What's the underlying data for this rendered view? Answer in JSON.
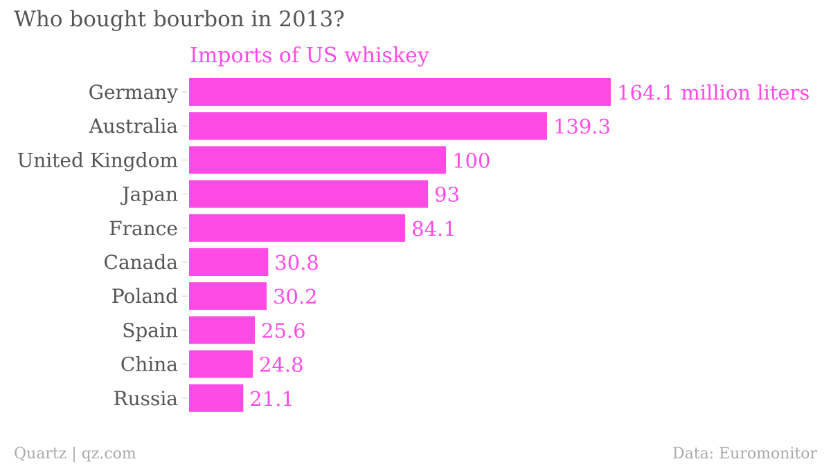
{
  "title": "Who bought bourbon in 2013?",
  "footer": {
    "credit": "Quartz | qz.com",
    "source": "Data: Euromonitor"
  },
  "colors": {
    "bar": "#ff4be6",
    "text": "#555555",
    "footer": "#aaaaaa",
    "tick": "#cccccc"
  },
  "chart_data": {
    "type": "bar",
    "orientation": "horizontal",
    "series": [
      {
        "name": "Imports of US whiskey",
        "values": [
          164.1,
          139.3,
          100,
          93,
          84.1,
          30.8,
          30.2,
          25.6,
          24.8,
          21.1
        ]
      }
    ],
    "categories": [
      "Germany",
      "Australia",
      "United Kingdom",
      "Japan",
      "France",
      "Canada",
      "Poland",
      "Spain",
      "China",
      "Russia"
    ],
    "data_labels": [
      "164.1 million liters",
      "139.3",
      "100",
      "93",
      "84.1",
      "30.8",
      "30.2",
      "25.6",
      "24.8",
      "21.1"
    ],
    "xlim": [
      0,
      164.1
    ],
    "grid": false,
    "legend": "none"
  }
}
